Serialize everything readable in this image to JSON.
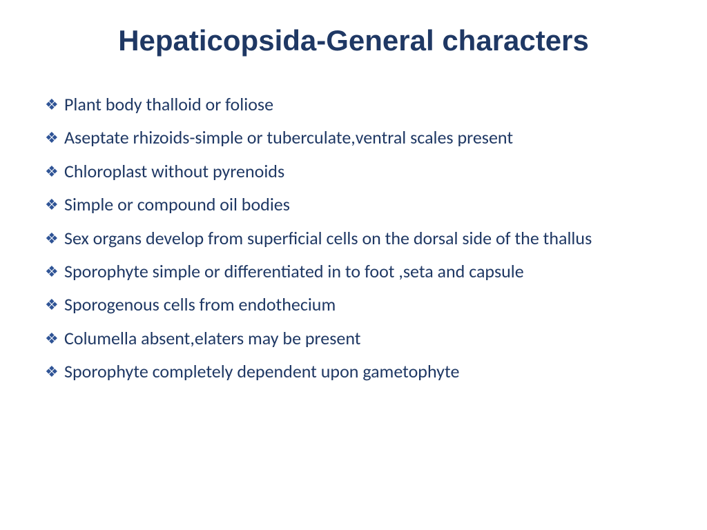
{
  "title": "Hepaticopsida-General characters",
  "title_color": "#1f3864",
  "title_fontsize": 42,
  "title_fontfamily": "Comic Sans MS",
  "text_color": "#1f3864",
  "bullet_color": "#2f5496",
  "body_fontsize": 26,
  "body_fontfamily": "Calibri",
  "background_color": "#ffffff",
  "bullet_glyph": "❖",
  "items": [
    "Plant body thalloid or foliose",
    "Aseptate rhizoids-simple or tuberculate,ventral scales present",
    "Chloroplast  without pyrenoids",
    "Simple or compound oil bodies",
    "Sex organs develop from superficial cells on the dorsal side of the thallus",
    "Sporophyte  simple or differentiated in to foot ,seta and capsule",
    "Sporogenous cells from endothecium",
    "Columella absent,elaters may be present",
    "Sporophyte completely dependent upon gametophyte"
  ]
}
